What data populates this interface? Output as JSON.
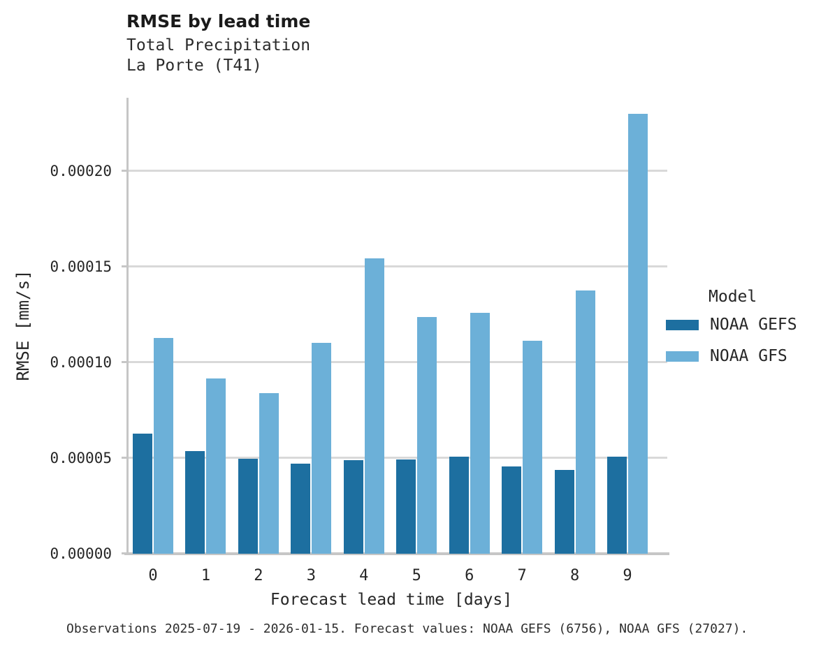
{
  "header": {
    "title": "RMSE by lead time",
    "subtitle1": "Total Precipitation",
    "subtitle2": "La Porte (T41)"
  },
  "chart_data": {
    "type": "bar",
    "title": "RMSE by lead time",
    "subtitle": [
      "Total Precipitation",
      "La Porte (T41)"
    ],
    "categories": [
      "0",
      "1",
      "2",
      "3",
      "4",
      "5",
      "6",
      "7",
      "8",
      "9"
    ],
    "series": [
      {
        "name": "NOAA GEFS",
        "color": "#1d6fa0",
        "values": [
          6.27e-05,
          5.35e-05,
          4.95e-05,
          4.69e-05,
          4.88e-05,
          4.92e-05,
          5.06e-05,
          4.55e-05,
          4.37e-05,
          5.06e-05
        ]
      },
      {
        "name": "NOAA GFS",
        "color": "#6cb0d8",
        "values": [
          0.0001127,
          9.15e-05,
          8.38e-05,
          0.0001101,
          0.0001543,
          0.0001236,
          0.0001258,
          0.0001112,
          0.0001375,
          0.0002298
        ]
      }
    ],
    "xlabel": "Forecast lead time [days]",
    "ylabel": "RMSE [mm/s]",
    "ylim": [
      0,
      0.000238
    ],
    "yticks": [
      0,
      5e-05,
      0.0001,
      0.00015,
      0.0002
    ],
    "ytick_labels": [
      "0.00000",
      "0.00005",
      "0.00010",
      "0.00015",
      "0.00020"
    ],
    "legend_title": "Model",
    "legend_position": "right",
    "grid": true
  },
  "caption": "Observations 2025-07-19 - 2026-01-15. Forecast values: NOAA GEFS (6756), NOAA GFS (27027)."
}
